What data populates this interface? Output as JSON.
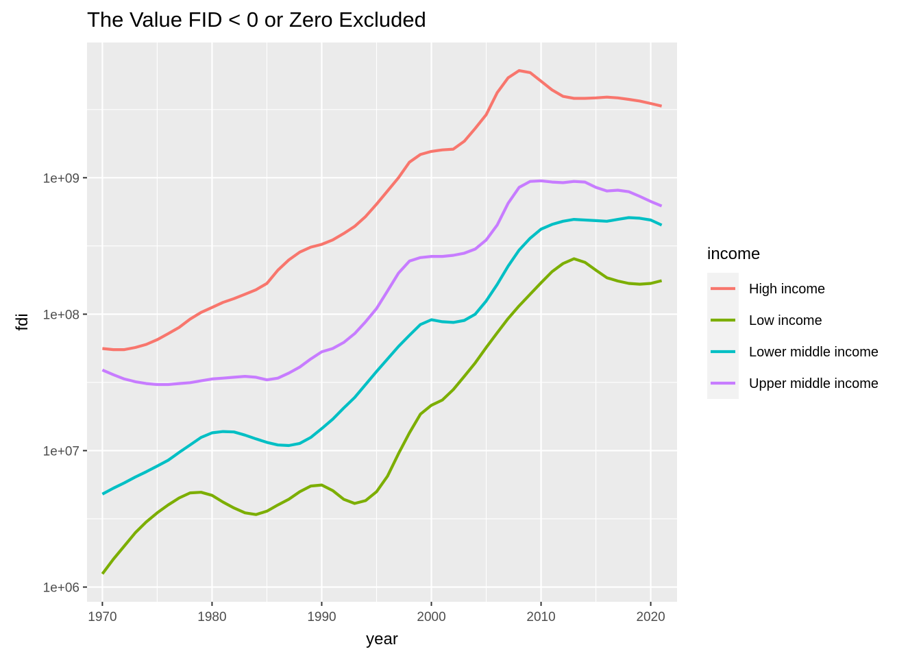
{
  "chart_data": {
    "type": "line",
    "title": "The Value FID < 0 or Zero Excluded",
    "xlabel": "year",
    "ylabel": "fdi",
    "y_scale": "log10",
    "xlim": [
      1968.6,
      2022.4
    ],
    "ylim": [
      780000,
      9800000000
    ],
    "x_ticks": [
      1970,
      1980,
      1990,
      2000,
      2010,
      2020
    ],
    "x_tick_labels": [
      "1970",
      "1980",
      "1990",
      "2000",
      "2010",
      "2020"
    ],
    "y_ticks": [
      1000000,
      10000000,
      100000000,
      1000000000
    ],
    "y_tick_labels": [
      "1e+06",
      "1e+07",
      "1e+08",
      "1e+09"
    ],
    "grid": true,
    "panel_background": "#ebebeb",
    "legend": {
      "title": "income",
      "position": "right"
    },
    "x": [
      1970,
      1971,
      1972,
      1973,
      1974,
      1975,
      1976,
      1977,
      1978,
      1979,
      1980,
      1981,
      1982,
      1983,
      1984,
      1985,
      1986,
      1987,
      1988,
      1989,
      1990,
      1991,
      1992,
      1993,
      1994,
      1995,
      1996,
      1997,
      1998,
      1999,
      2000,
      2001,
      2002,
      2003,
      2004,
      2005,
      2006,
      2007,
      2008,
      2009,
      2010,
      2011,
      2012,
      2013,
      2014,
      2015,
      2016,
      2017,
      2018,
      2019,
      2020,
      2021
    ],
    "series": [
      {
        "name": "High income",
        "color": "#F8766D",
        "values": [
          56000000,
          55000000,
          55000000,
          57000000,
          60000000,
          65000000,
          72000000,
          80000000,
          92000000,
          103000000,
          112000000,
          122000000,
          130000000,
          140000000,
          151000000,
          168000000,
          210000000,
          250000000,
          285000000,
          310000000,
          325000000,
          350000000,
          390000000,
          440000000,
          520000000,
          640000000,
          800000000,
          1000000000,
          1300000000,
          1480000000,
          1560000000,
          1600000000,
          1620000000,
          1850000000,
          2300000000,
          2900000000,
          4200000000,
          5400000000,
          6100000000,
          5900000000,
          5100000000,
          4400000000,
          3950000000,
          3820000000,
          3820000000,
          3850000000,
          3900000000,
          3850000000,
          3750000000,
          3650000000,
          3500000000,
          3350000000
        ]
      },
      {
        "name": "Low income",
        "color": "#7CAE00",
        "values": [
          1250000,
          1600000,
          2000000,
          2500000,
          3000000,
          3500000,
          4000000,
          4500000,
          4900000,
          4950000,
          4700000,
          4200000,
          3800000,
          3500000,
          3400000,
          3600000,
          4000000,
          4400000,
          5000000,
          5500000,
          5600000,
          5100000,
          4400000,
          4100000,
          4300000,
          5000000,
          6500000,
          9500000,
          13500000,
          18500000,
          21500000,
          23500000,
          28000000,
          35000000,
          44000000,
          57000000,
          73000000,
          93000000,
          115000000,
          140000000,
          170000000,
          205000000,
          235000000,
          255000000,
          240000000,
          210000000,
          185000000,
          175000000,
          168000000,
          166000000,
          168000000,
          176000000
        ]
      },
      {
        "name": "Lower middle income",
        "color": "#00BFC4",
        "values": [
          4800000,
          5300000,
          5800000,
          6400000,
          7000000,
          7700000,
          8500000,
          9700000,
          11000000,
          12500000,
          13500000,
          13800000,
          13700000,
          13000000,
          12200000,
          11500000,
          11000000,
          10900000,
          11300000,
          12500000,
          14500000,
          17000000,
          20500000,
          24500000,
          30500000,
          38000000,
          47000000,
          58000000,
          70000000,
          84000000,
          91000000,
          88000000,
          87000000,
          90000000,
          100000000,
          125000000,
          165000000,
          225000000,
          295000000,
          360000000,
          420000000,
          455000000,
          480000000,
          495000000,
          490000000,
          485000000,
          480000000,
          495000000,
          510000000,
          505000000,
          490000000,
          450000000
        ]
      },
      {
        "name": "Upper middle income",
        "color": "#C77CFF",
        "values": [
          39000000,
          36000000,
          33500000,
          32000000,
          31000000,
          30500000,
          30500000,
          31000000,
          31500000,
          32500000,
          33500000,
          34000000,
          34500000,
          35000000,
          34500000,
          33000000,
          34000000,
          37000000,
          41000000,
          47000000,
          53000000,
          56000000,
          62000000,
          72000000,
          88000000,
          110000000,
          148000000,
          200000000,
          245000000,
          260000000,
          265000000,
          265000000,
          270000000,
          280000000,
          300000000,
          350000000,
          450000000,
          650000000,
          850000000,
          940000000,
          950000000,
          930000000,
          920000000,
          940000000,
          930000000,
          850000000,
          800000000,
          810000000,
          790000000,
          730000000,
          670000000,
          620000000
        ]
      }
    ]
  }
}
